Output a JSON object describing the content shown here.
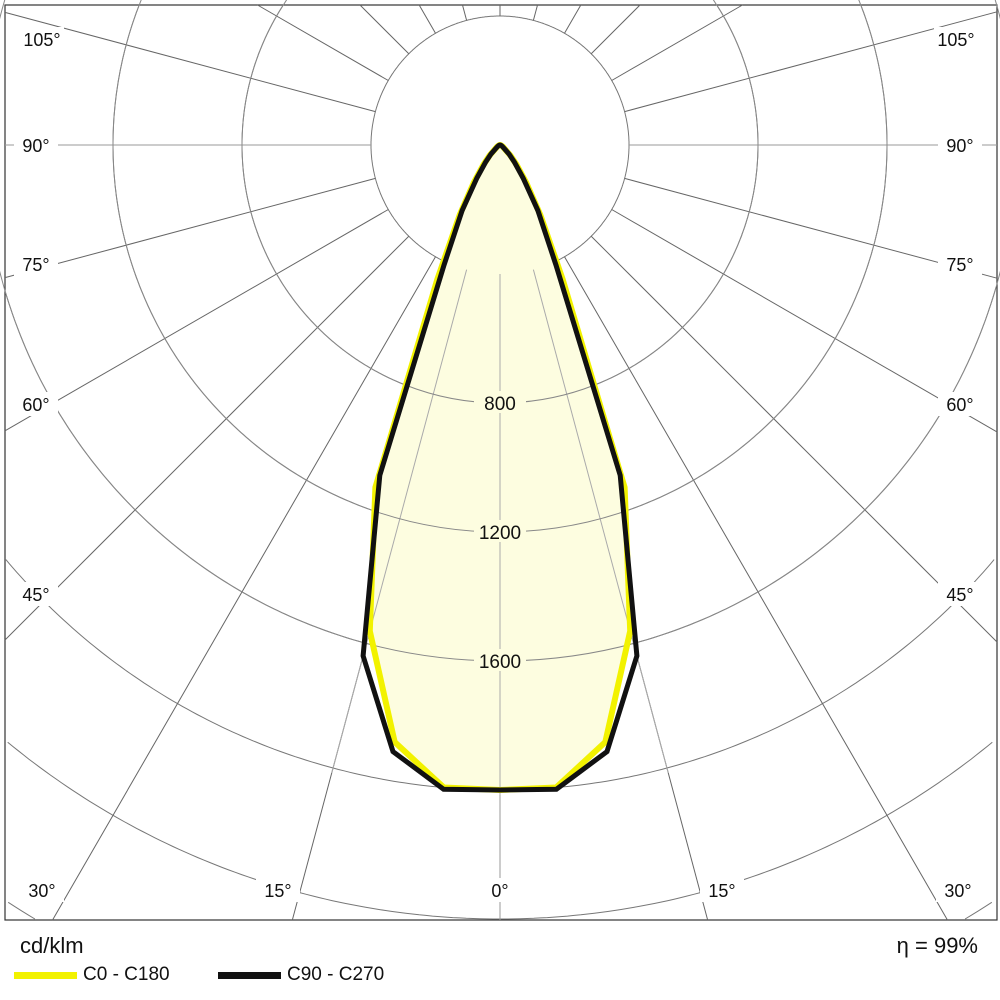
{
  "chart_data": {
    "type": "polar",
    "unit_label": "cd/klm",
    "efficiency_label": "η = 99%",
    "angle_labels": [
      "0°",
      "15°",
      "30°",
      "45°",
      "60°",
      "75°",
      "90°",
      "105°"
    ],
    "angle_ticks": [
      0,
      15,
      30,
      45,
      60,
      75,
      90,
      105
    ],
    "radial_labels": [
      "800",
      "1200",
      "1600"
    ],
    "radial_ticks": [
      800,
      1200,
      1600
    ],
    "radial_grid_step": 400,
    "grid": true,
    "legend_position": "bottom-left",
    "angles": [
      0,
      5,
      10,
      15,
      20,
      25,
      30,
      35,
      40,
      45,
      50,
      60,
      70,
      80,
      90
    ],
    "series": [
      {
        "name": "C0 - C180",
        "color": "#f2f200",
        "values": [
          2000,
          2000,
          1880,
          1560,
          1130,
          460,
          250,
          140,
          80,
          45,
          20,
          10,
          5,
          2,
          0
        ]
      },
      {
        "name": "C90 - C270",
        "color": "#111111",
        "values": [
          2000,
          2005,
          1910,
          1640,
          1090,
          410,
          235,
          125,
          70,
          40,
          18,
          8,
          4,
          2,
          0
        ]
      }
    ],
    "fill_color": "#fdfde0"
  }
}
